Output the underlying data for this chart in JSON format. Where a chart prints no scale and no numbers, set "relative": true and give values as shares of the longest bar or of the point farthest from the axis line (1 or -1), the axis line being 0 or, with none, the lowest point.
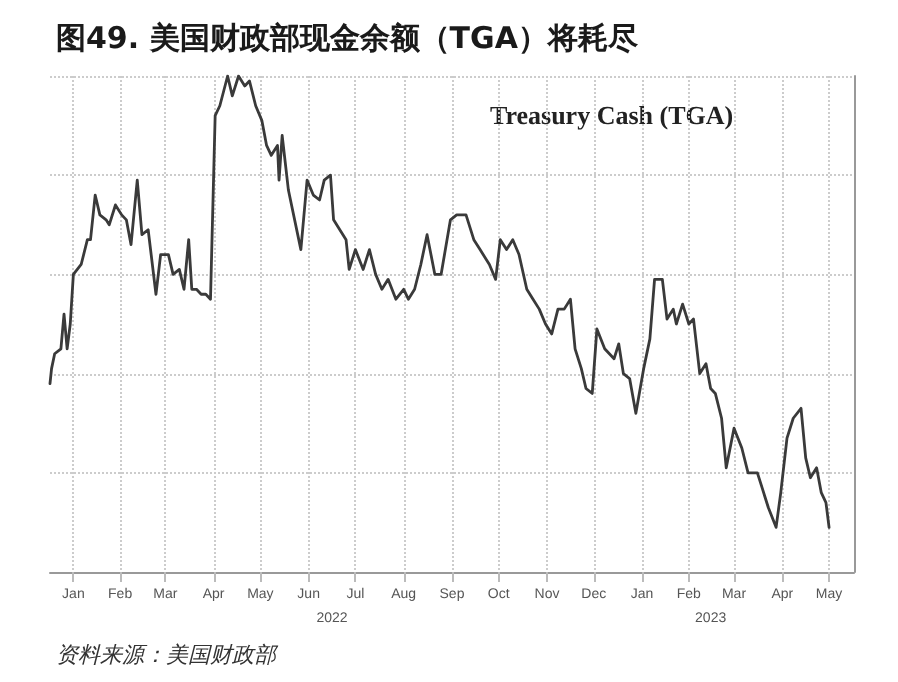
{
  "chart_data": {
    "type": "line",
    "title": "图49. 美国财政部现金余额（TGA）将耗尽",
    "annotations": [
      "Treasury Cash (TGA)",
      "资料来源：美国财政部"
    ],
    "relative": true,
    "grid": true,
    "marker": "none",
    "line_style": "solid",
    "xlim": [
      "2022-01-01",
      "2023-06-01"
    ],
    "xticks": [
      {
        "value": "2022-01-16",
        "label": "Jan"
      },
      {
        "value": "2022-02-15",
        "label": "Feb"
      },
      {
        "value": "2022-03-16",
        "label": "Mar"
      },
      {
        "value": "2022-04-16",
        "label": "Apr"
      },
      {
        "value": "2022-05-16",
        "label": "May"
      },
      {
        "value": "2022-06-16",
        "label": "Jun"
      },
      {
        "value": "2022-07-16",
        "label": "Jul"
      },
      {
        "value": "2022-08-16",
        "label": "Aug"
      },
      {
        "value": "2022-09-16",
        "label": "Sep"
      },
      {
        "value": "2022-10-16",
        "label": "Oct"
      },
      {
        "value": "2022-11-16",
        "label": "Nov"
      },
      {
        "value": "2022-12-16",
        "label": "Dec"
      },
      {
        "value": "2023-01-16",
        "label": "Jan"
      },
      {
        "value": "2023-02-15",
        "label": "Feb"
      },
      {
        "value": "2023-03-16",
        "label": "Mar"
      },
      {
        "value": "2023-04-16",
        "label": "Apr"
      },
      {
        "value": "2023-05-16",
        "label": "May"
      }
    ],
    "x2lim": [
      "2022-01-01",
      "2023-06-01"
    ],
    "x2ticks": [
      {
        "value": "2022-07-01",
        "label": "2022"
      },
      {
        "value": "2023-03-01",
        "label": "2023"
      }
    ],
    "series": [
      {
        "color": "#3a3a3a",
        "x": [
          "2022-01-01",
          "2022-01-02",
          "2022-01-04",
          "2022-01-08",
          "2022-01-10",
          "2022-01-12",
          "2022-01-14",
          "2022-01-16",
          "2022-01-21",
          "2022-01-25",
          "2022-01-27",
          "2022-01-30",
          "2022-02-02",
          "2022-02-06",
          "2022-02-08",
          "2022-02-12",
          "2022-02-16",
          "2022-02-19",
          "2022-02-22",
          "2022-02-26",
          "2022-03-01",
          "2022-03-05",
          "2022-03-10",
          "2022-03-13",
          "2022-03-18",
          "2022-03-21",
          "2022-03-25",
          "2022-03-28",
          "2022-03-31",
          "2022-04-02",
          "2022-04-05",
          "2022-04-08",
          "2022-04-11",
          "2022-04-14",
          "2022-04-17",
          "2022-04-20",
          "2022-04-25",
          "2022-04-28",
          "2022-05-02",
          "2022-05-06",
          "2022-05-09",
          "2022-05-13",
          "2022-05-17",
          "2022-05-20",
          "2022-05-23",
          "2022-05-27",
          "2022-05-28",
          "2022-05-30",
          "2022-06-03",
          "2022-06-11",
          "2022-06-15",
          "2022-06-19",
          "2022-06-23",
          "2022-06-26",
          "2022-06-30",
          "2022-07-02",
          "2022-07-06",
          "2022-07-10",
          "2022-07-12",
          "2022-07-16",
          "2022-07-21",
          "2022-07-25",
          "2022-07-29",
          "2022-08-02",
          "2022-08-06",
          "2022-08-11",
          "2022-08-16",
          "2022-08-19",
          "2022-08-23",
          "2022-08-27",
          "2022-08-31",
          "2022-09-05",
          "2022-09-09",
          "2022-09-15",
          "2022-09-19",
          "2022-09-25",
          "2022-09-30",
          "2022-10-04",
          "2022-10-10",
          "2022-10-14",
          "2022-10-17",
          "2022-10-21",
          "2022-10-25",
          "2022-10-29",
          "2022-11-03",
          "2022-11-07",
          "2022-11-11",
          "2022-11-15",
          "2022-11-19",
          "2022-11-23",
          "2022-11-27",
          "2022-12-01",
          "2022-12-04",
          "2022-12-08",
          "2022-12-11",
          "2022-12-15",
          "2022-12-18",
          "2022-12-23",
          "2022-12-29",
          "2023-01-01",
          "2023-01-04",
          "2023-01-08",
          "2023-01-12",
          "2023-01-17",
          "2023-01-21",
          "2023-01-24",
          "2023-01-29",
          "2023-02-01",
          "2023-02-05",
          "2023-02-07",
          "2023-02-11",
          "2023-02-15",
          "2023-02-18",
          "2023-02-22",
          "2023-02-26",
          "2023-03-01",
          "2023-03-04",
          "2023-03-08",
          "2023-03-11",
          "2023-03-16",
          "2023-03-21",
          "2023-03-25",
          "2023-03-31",
          "2023-04-03",
          "2023-04-07",
          "2023-04-12",
          "2023-04-15",
          "2023-04-19",
          "2023-04-23",
          "2023-04-28",
          "2023-05-01",
          "2023-05-04",
          "2023-05-08",
          "2023-05-11",
          "2023-05-14",
          "2023-05-16"
        ],
        "values": [
          0.38,
          0.41,
          0.44,
          0.45,
          0.52,
          0.45,
          0.5,
          0.6,
          0.62,
          0.67,
          0.67,
          0.76,
          0.72,
          0.71,
          0.7,
          0.74,
          0.72,
          0.71,
          0.66,
          0.79,
          0.68,
          0.69,
          0.56,
          0.64,
          0.64,
          0.6,
          0.61,
          0.57,
          0.67,
          0.57,
          0.57,
          0.56,
          0.56,
          0.55,
          0.92,
          0.94,
          1,
          0.96,
          1,
          0.98,
          0.99,
          0.94,
          0.91,
          0.86,
          0.84,
          0.86,
          0.79,
          0.88,
          0.77,
          0.65,
          0.79,
          0.76,
          0.75,
          0.79,
          0.8,
          0.71,
          0.69,
          0.67,
          0.61,
          0.65,
          0.61,
          0.65,
          0.6,
          0.57,
          0.59,
          0.55,
          0.57,
          0.55,
          0.57,
          0.62,
          0.68,
          0.6,
          0.6,
          0.71,
          0.72,
          0.72,
          0.67,
          0.65,
          0.62,
          0.59,
          0.67,
          0.65,
          0.67,
          0.64,
          0.57,
          0.55,
          0.53,
          0.5,
          0.48,
          0.53,
          0.53,
          0.55,
          0.45,
          0.41,
          0.37,
          0.36,
          0.49,
          0.45,
          0.43,
          0.46,
          0.4,
          0.39,
          0.32,
          0.41,
          0.47,
          0.59,
          0.59,
          0.51,
          0.53,
          0.5,
          0.54,
          0.5,
          0.51,
          0.4,
          0.42,
          0.37,
          0.36,
          0.31,
          0.21,
          0.29,
          0.25,
          0.2,
          0.2,
          0.17,
          0.13,
          0.09,
          0.16,
          0.27,
          0.31,
          0.33,
          0.23,
          0.19,
          0.21,
          0.16,
          0.14,
          0.09
        ]
      }
    ]
  }
}
